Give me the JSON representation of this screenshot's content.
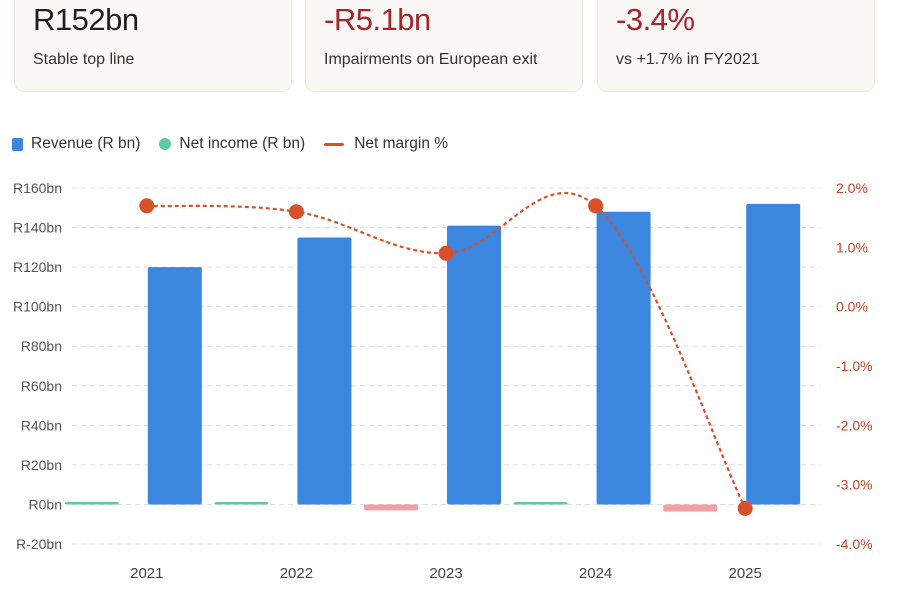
{
  "kpis": [
    {
      "value": "R152bn",
      "label": "Stable top line",
      "tone": "neutral"
    },
    {
      "value": "-R5.1bn",
      "label": "Impairments on European exit",
      "tone": "negative"
    },
    {
      "value": "-3.4%",
      "label": "vs +1.7% in FY2021",
      "tone": "negative"
    }
  ],
  "legend": {
    "revenue": "Revenue (R bn)",
    "net_income": "Net income (R bn)",
    "margin": "Net margin %"
  },
  "colors": {
    "revenue": "#3b86df",
    "net_income_positive": "#5ecb9e",
    "net_income_negative": "#f2a0a4",
    "margin": "#d8512b",
    "grid": "#dcdcdc"
  },
  "chart_data": {
    "type": "bar",
    "categories": [
      "2021",
      "2022",
      "2023",
      "2024",
      "2025"
    ],
    "series": [
      {
        "name": "Revenue (R bn)",
        "type": "bar",
        "axis": "left",
        "values": [
          120,
          135,
          141,
          148,
          152
        ]
      },
      {
        "name": "Net income (R bn)",
        "type": "bar",
        "axis": "left",
        "values": [
          1.3,
          1.0,
          -3.0,
          0,
          -3.6
        ]
      },
      {
        "name": "Net margin %",
        "type": "line",
        "style": "dashed",
        "axis": "right",
        "values": [
          1.7,
          1.6,
          0.9,
          1.7,
          -3.4
        ]
      }
    ],
    "y_left": {
      "ylim": [
        -20,
        160
      ],
      "ticks": [
        -20,
        0,
        20,
        40,
        60,
        80,
        100,
        120,
        140,
        160
      ],
      "tick_labels": [
        "R-20bn",
        "R0bn",
        "R20bn",
        "R40bn",
        "R60bn",
        "R80bn",
        "R100bn",
        "R120bn",
        "R140bn",
        "R160bn"
      ]
    },
    "y_right": {
      "ylim": [
        -4,
        2
      ],
      "ticks": [
        -4,
        -3,
        -2,
        -1,
        0,
        1,
        2
      ],
      "tick_labels": [
        "-4.0%",
        "-3.0%",
        "-2.0%",
        "-1.0%",
        "0.0%",
        "1.0%",
        "2.0%"
      ]
    },
    "grid": true,
    "legend_position": "top-left"
  }
}
